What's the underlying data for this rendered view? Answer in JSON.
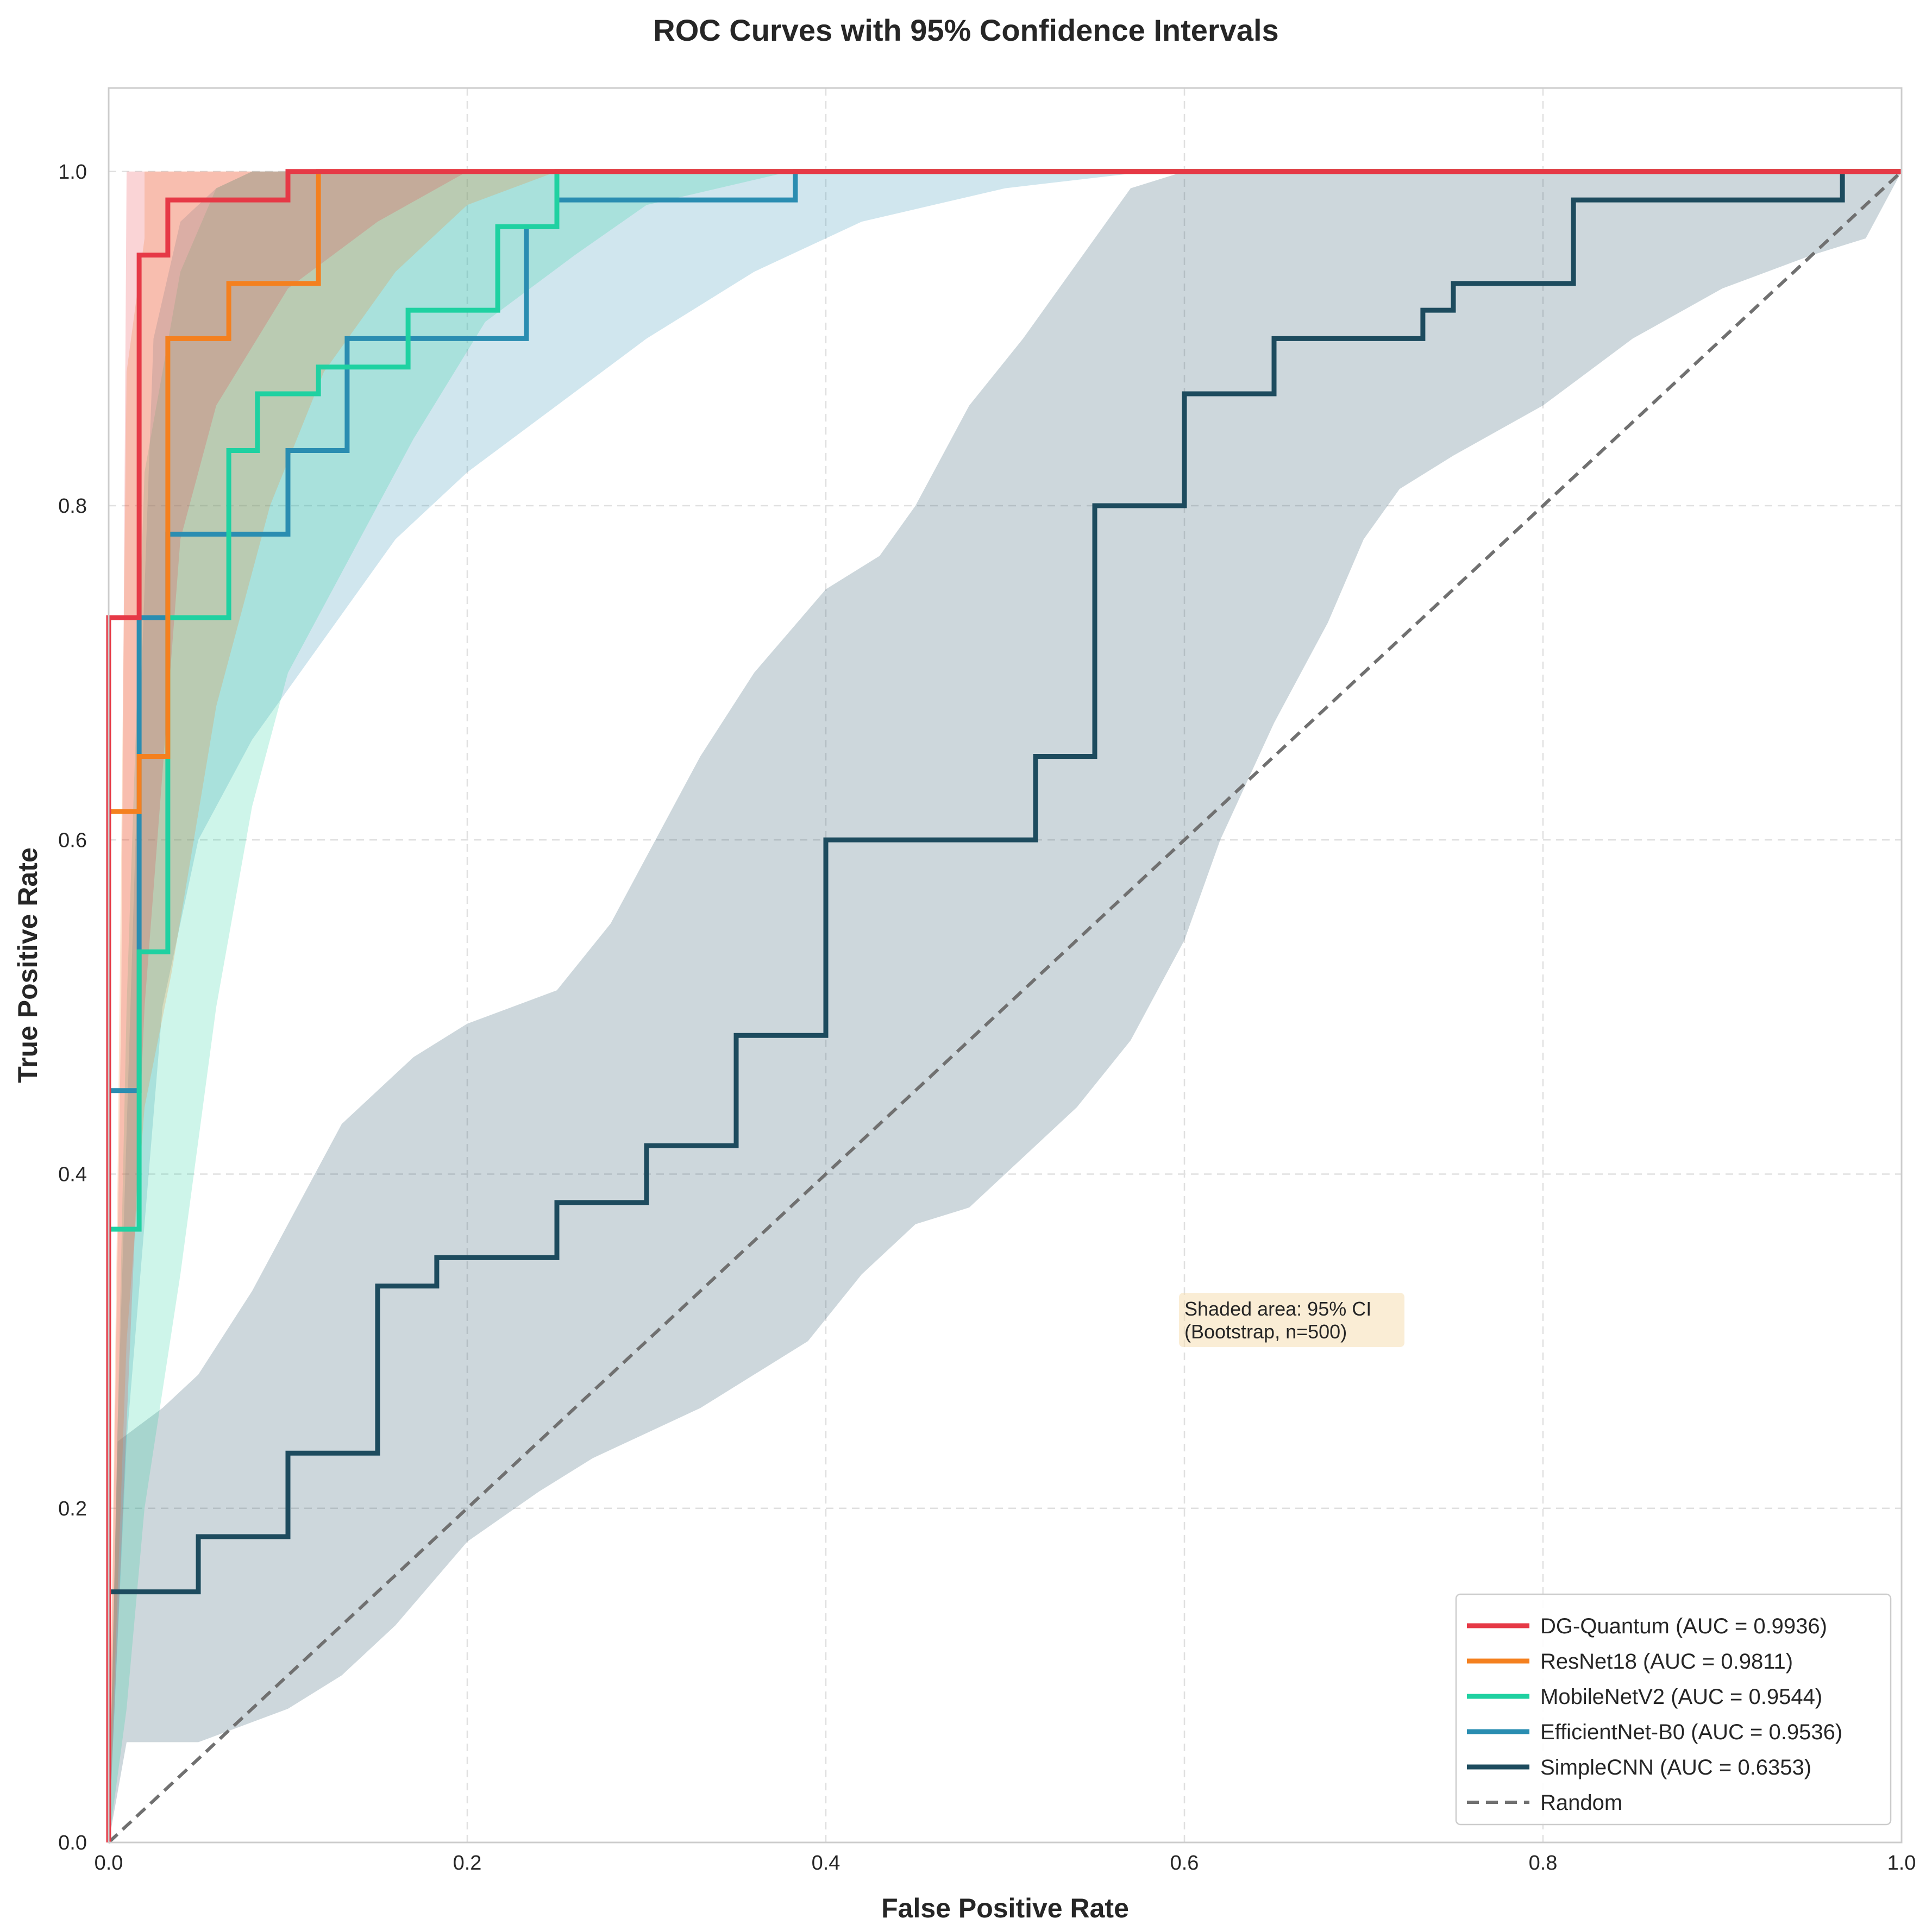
{
  "chart_data": {
    "type": "line",
    "title": "ROC Curves with 95% Confidence Intervals",
    "xlabel": "False Positive Rate",
    "ylabel": "True Positive Rate",
    "xlim": [
      0,
      1
    ],
    "ylim": [
      0,
      1.05
    ],
    "xticks": [
      0.0,
      0.2,
      0.4,
      0.6,
      0.8,
      1.0
    ],
    "yticks": [
      0.0,
      0.2,
      0.4,
      0.6,
      0.8,
      1.0
    ],
    "xtick_labels": [
      "0.0",
      "0.2",
      "0.4",
      "0.6",
      "0.8",
      "1.0"
    ],
    "ytick_labels": [
      "0.0",
      "0.2",
      "0.4",
      "0.6",
      "0.8",
      "1.0"
    ],
    "grid": true,
    "legend_position": "bottom-right",
    "annotation": {
      "lines": [
        "Shaded area: 95% CI",
        "(Bootstrap, n=500)"
      ],
      "x": 0.6,
      "y": 0.305,
      "box_color": "#f5deb3"
    },
    "series": [
      {
        "name": "DG-Quantum",
        "legend": "DG-Quantum (AUC = 0.9936)",
        "auc": 0.9936,
        "color": "#e63946",
        "fpr": [
          0,
          0,
          0.017,
          0.017,
          0.033,
          0.033,
          0.1,
          0.1,
          1
        ],
        "tpr": [
          0,
          0.733,
          0.733,
          0.95,
          0.95,
          0.983,
          0.983,
          1,
          1
        ],
        "ci_upper": [
          [
            0,
            0
          ],
          [
            0.007,
            0.5
          ],
          [
            0.01,
            1.0
          ],
          [
            1,
            1
          ]
        ],
        "ci_lower": [
          [
            0,
            0
          ],
          [
            0.01,
            0.25
          ],
          [
            0.02,
            0.5
          ],
          [
            0.04,
            0.78
          ],
          [
            0.06,
            0.86
          ],
          [
            0.1,
            0.93
          ],
          [
            0.15,
            0.97
          ],
          [
            0.2,
            1.0
          ],
          [
            1,
            1
          ]
        ]
      },
      {
        "name": "ResNet18",
        "legend": "ResNet18 (AUC = 0.9811)",
        "auc": 0.9811,
        "color": "#f4801f",
        "fpr": [
          0,
          0,
          0.017,
          0.017,
          0.033,
          0.033,
          0.067,
          0.067,
          0.117,
          0.117,
          1
        ],
        "tpr": [
          0,
          0.617,
          0.617,
          0.65,
          0.65,
          0.9,
          0.9,
          0.933,
          0.933,
          1,
          1
        ],
        "ci_upper": [
          [
            0,
            0
          ],
          [
            0.005,
            0.4
          ],
          [
            0.01,
            0.88
          ],
          [
            0.02,
            0.96
          ],
          [
            0.02,
            1.0
          ],
          [
            1,
            1
          ]
        ],
        "ci_lower": [
          [
            0,
            0
          ],
          [
            0.01,
            0.3
          ],
          [
            0.02,
            0.44
          ],
          [
            0.035,
            0.52
          ],
          [
            0.06,
            0.68
          ],
          [
            0.09,
            0.8
          ],
          [
            0.12,
            0.88
          ],
          [
            0.16,
            0.94
          ],
          [
            0.2,
            0.98
          ],
          [
            0.25,
            1.0
          ],
          [
            1,
            1
          ]
        ]
      },
      {
        "name": "MobileNetV2",
        "legend": "MobileNetV2 (AUC = 0.9544)",
        "auc": 0.9544,
        "color": "#1fd1a1",
        "fpr": [
          0,
          0,
          0.017,
          0.017,
          0.033,
          0.033,
          0.067,
          0.067,
          0.083,
          0.083,
          0.117,
          0.117,
          0.167,
          0.167,
          0.217,
          0.217,
          0.25,
          0.25,
          1
        ],
        "tpr": [
          0,
          0.367,
          0.367,
          0.533,
          0.533,
          0.733,
          0.733,
          0.833,
          0.833,
          0.867,
          0.867,
          0.883,
          0.883,
          0.917,
          0.917,
          0.967,
          0.967,
          1,
          1
        ],
        "ci_upper": [
          [
            0,
            0
          ],
          [
            0.005,
            0.25
          ],
          [
            0.01,
            0.5
          ],
          [
            0.02,
            0.82
          ],
          [
            0.04,
            0.94
          ],
          [
            0.06,
            0.99
          ],
          [
            0.08,
            1.0
          ],
          [
            1,
            1
          ]
        ],
        "ci_lower": [
          [
            0,
            0
          ],
          [
            0.01,
            0.08
          ],
          [
            0.02,
            0.2
          ],
          [
            0.04,
            0.34
          ],
          [
            0.06,
            0.5
          ],
          [
            0.08,
            0.62
          ],
          [
            0.1,
            0.7
          ],
          [
            0.13,
            0.76
          ],
          [
            0.17,
            0.84
          ],
          [
            0.21,
            0.91
          ],
          [
            0.26,
            0.95
          ],
          [
            0.3,
            0.98
          ],
          [
            0.38,
            1.0
          ],
          [
            1,
            1
          ]
        ]
      },
      {
        "name": "EfficientNet-B0",
        "legend": "EfficientNet-B0 (AUC = 0.9536)",
        "auc": 0.9536,
        "color": "#2a8db1",
        "fpr": [
          0,
          0,
          0.017,
          0.017,
          0.033,
          0.033,
          0.1,
          0.1,
          0.133,
          0.133,
          0.233,
          0.233,
          0.25,
          0.25,
          0.383,
          0.383,
          1
        ],
        "tpr": [
          0,
          0.45,
          0.45,
          0.733,
          0.733,
          0.783,
          0.783,
          0.833,
          0.833,
          0.9,
          0.9,
          0.967,
          0.967,
          0.983,
          0.983,
          1,
          1
        ],
        "ci_upper": [
          [
            0,
            0
          ],
          [
            0.005,
            0.25
          ],
          [
            0.015,
            0.6
          ],
          [
            0.025,
            0.9
          ],
          [
            0.04,
            0.97
          ],
          [
            0.06,
            0.99
          ],
          [
            0.08,
            1.0
          ],
          [
            1,
            1
          ]
        ],
        "ci_lower": [
          [
            0,
            0
          ],
          [
            0.01,
            0.24
          ],
          [
            0.03,
            0.5
          ],
          [
            0.05,
            0.6
          ],
          [
            0.08,
            0.66
          ],
          [
            0.12,
            0.72
          ],
          [
            0.16,
            0.78
          ],
          [
            0.2,
            0.82
          ],
          [
            0.25,
            0.86
          ],
          [
            0.3,
            0.9
          ],
          [
            0.36,
            0.94
          ],
          [
            0.42,
            0.97
          ],
          [
            0.5,
            0.99
          ],
          [
            0.58,
            1.0
          ],
          [
            1,
            1
          ]
        ]
      },
      {
        "name": "SimpleCNN",
        "legend": "SimpleCNN (AUC = 0.6353)",
        "auc": 0.6353,
        "color": "#1d4b5e",
        "fpr": [
          0,
          0,
          0.05,
          0.05,
          0.1,
          0.1,
          0.15,
          0.15,
          0.183,
          0.183,
          0.25,
          0.25,
          0.3,
          0.3,
          0.35,
          0.35,
          0.4,
          0.4,
          0.517,
          0.517,
          0.55,
          0.55,
          0.6,
          0.6,
          0.65,
          0.65,
          0.733,
          0.733,
          0.75,
          0.75,
          0.817,
          0.817,
          0.967,
          0.967,
          1
        ],
        "tpr": [
          0,
          0.15,
          0.15,
          0.183,
          0.183,
          0.233,
          0.233,
          0.333,
          0.333,
          0.35,
          0.35,
          0.383,
          0.383,
          0.417,
          0.417,
          0.483,
          0.483,
          0.6,
          0.6,
          0.65,
          0.65,
          0.8,
          0.8,
          0.867,
          0.867,
          0.9,
          0.9,
          0.917,
          0.917,
          0.933,
          0.933,
          0.983,
          0.983,
          1,
          1
        ],
        "ci_upper": [
          [
            0,
            0
          ],
          [
            0.005,
            0.24
          ],
          [
            0.03,
            0.26
          ],
          [
            0.05,
            0.28
          ],
          [
            0.08,
            0.33
          ],
          [
            0.1,
            0.37
          ],
          [
            0.13,
            0.43
          ],
          [
            0.17,
            0.47
          ],
          [
            0.2,
            0.49
          ],
          [
            0.25,
            0.51
          ],
          [
            0.28,
            0.55
          ],
          [
            0.3,
            0.59
          ],
          [
            0.33,
            0.65
          ],
          [
            0.36,
            0.7
          ],
          [
            0.4,
            0.75
          ],
          [
            0.43,
            0.77
          ],
          [
            0.45,
            0.8
          ],
          [
            0.48,
            0.86
          ],
          [
            0.51,
            0.9
          ],
          [
            0.53,
            0.93
          ],
          [
            0.55,
            0.96
          ],
          [
            0.57,
            0.99
          ],
          [
            0.6,
            1.0
          ],
          [
            1,
            1
          ]
        ],
        "ci_lower": [
          [
            0,
            0
          ],
          [
            0.01,
            0.06
          ],
          [
            0.05,
            0.06
          ],
          [
            0.1,
            0.08
          ],
          [
            0.13,
            0.1
          ],
          [
            0.16,
            0.13
          ],
          [
            0.2,
            0.18
          ],
          [
            0.24,
            0.21
          ],
          [
            0.27,
            0.23
          ],
          [
            0.3,
            0.245
          ],
          [
            0.33,
            0.26
          ],
          [
            0.36,
            0.28
          ],
          [
            0.39,
            0.3
          ],
          [
            0.42,
            0.34
          ],
          [
            0.45,
            0.37
          ],
          [
            0.48,
            0.38
          ],
          [
            0.51,
            0.41
          ],
          [
            0.54,
            0.44
          ],
          [
            0.57,
            0.48
          ],
          [
            0.6,
            0.54
          ],
          [
            0.62,
            0.6
          ],
          [
            0.65,
            0.67
          ],
          [
            0.68,
            0.73
          ],
          [
            0.7,
            0.78
          ],
          [
            0.72,
            0.81
          ],
          [
            0.75,
            0.83
          ],
          [
            0.8,
            0.86
          ],
          [
            0.85,
            0.9
          ],
          [
            0.9,
            0.93
          ],
          [
            0.95,
            0.95
          ],
          [
            0.98,
            0.96
          ],
          [
            1,
            1
          ]
        ]
      }
    ],
    "reference_line": {
      "name": "Random",
      "legend": "Random",
      "color": "#707070",
      "x": [
        0,
        1
      ],
      "y": [
        0,
        1
      ]
    }
  }
}
